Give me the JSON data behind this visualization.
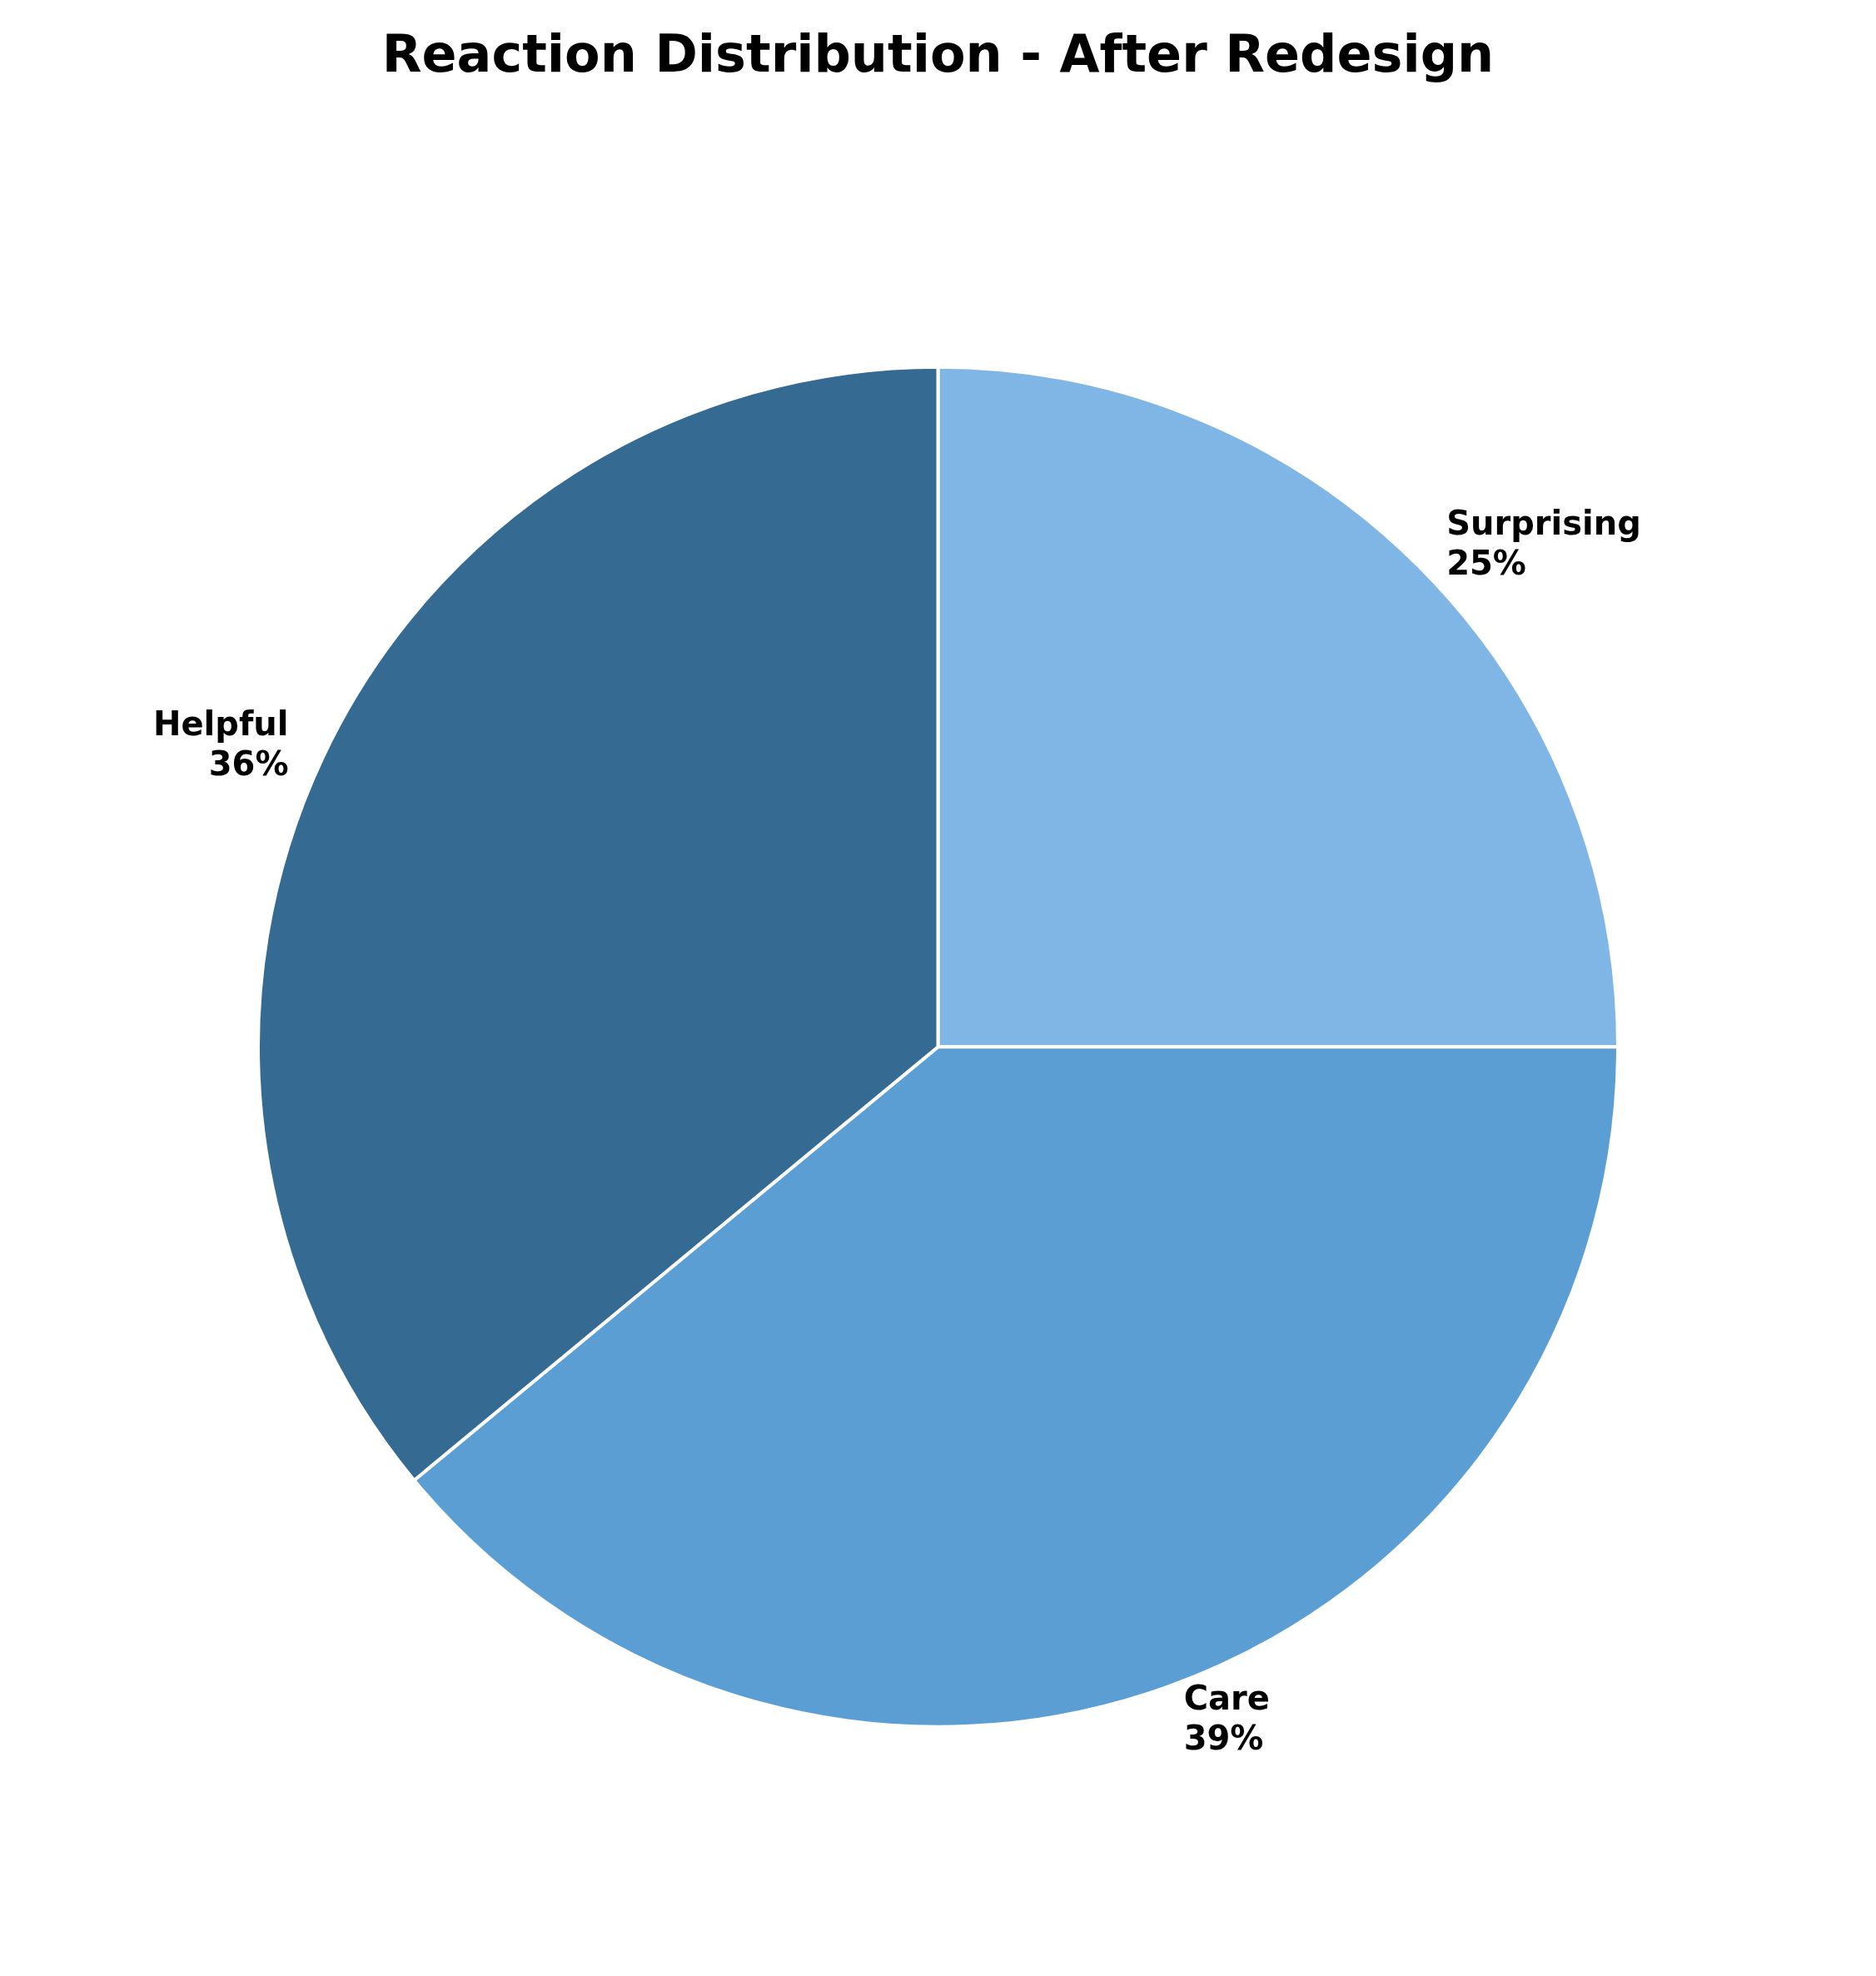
{
  "chart_data": {
    "type": "pie",
    "title": "Reaction Distribution - After Redesign",
    "categories": [
      "Surprising",
      "Care",
      "Helpful"
    ],
    "values": [
      25,
      39,
      36
    ],
    "colors": [
      "#80b6e6",
      "#5a9ed4",
      "#356a92"
    ],
    "value_labels": [
      "25%",
      "39%",
      "36%"
    ],
    "legend": false
  }
}
